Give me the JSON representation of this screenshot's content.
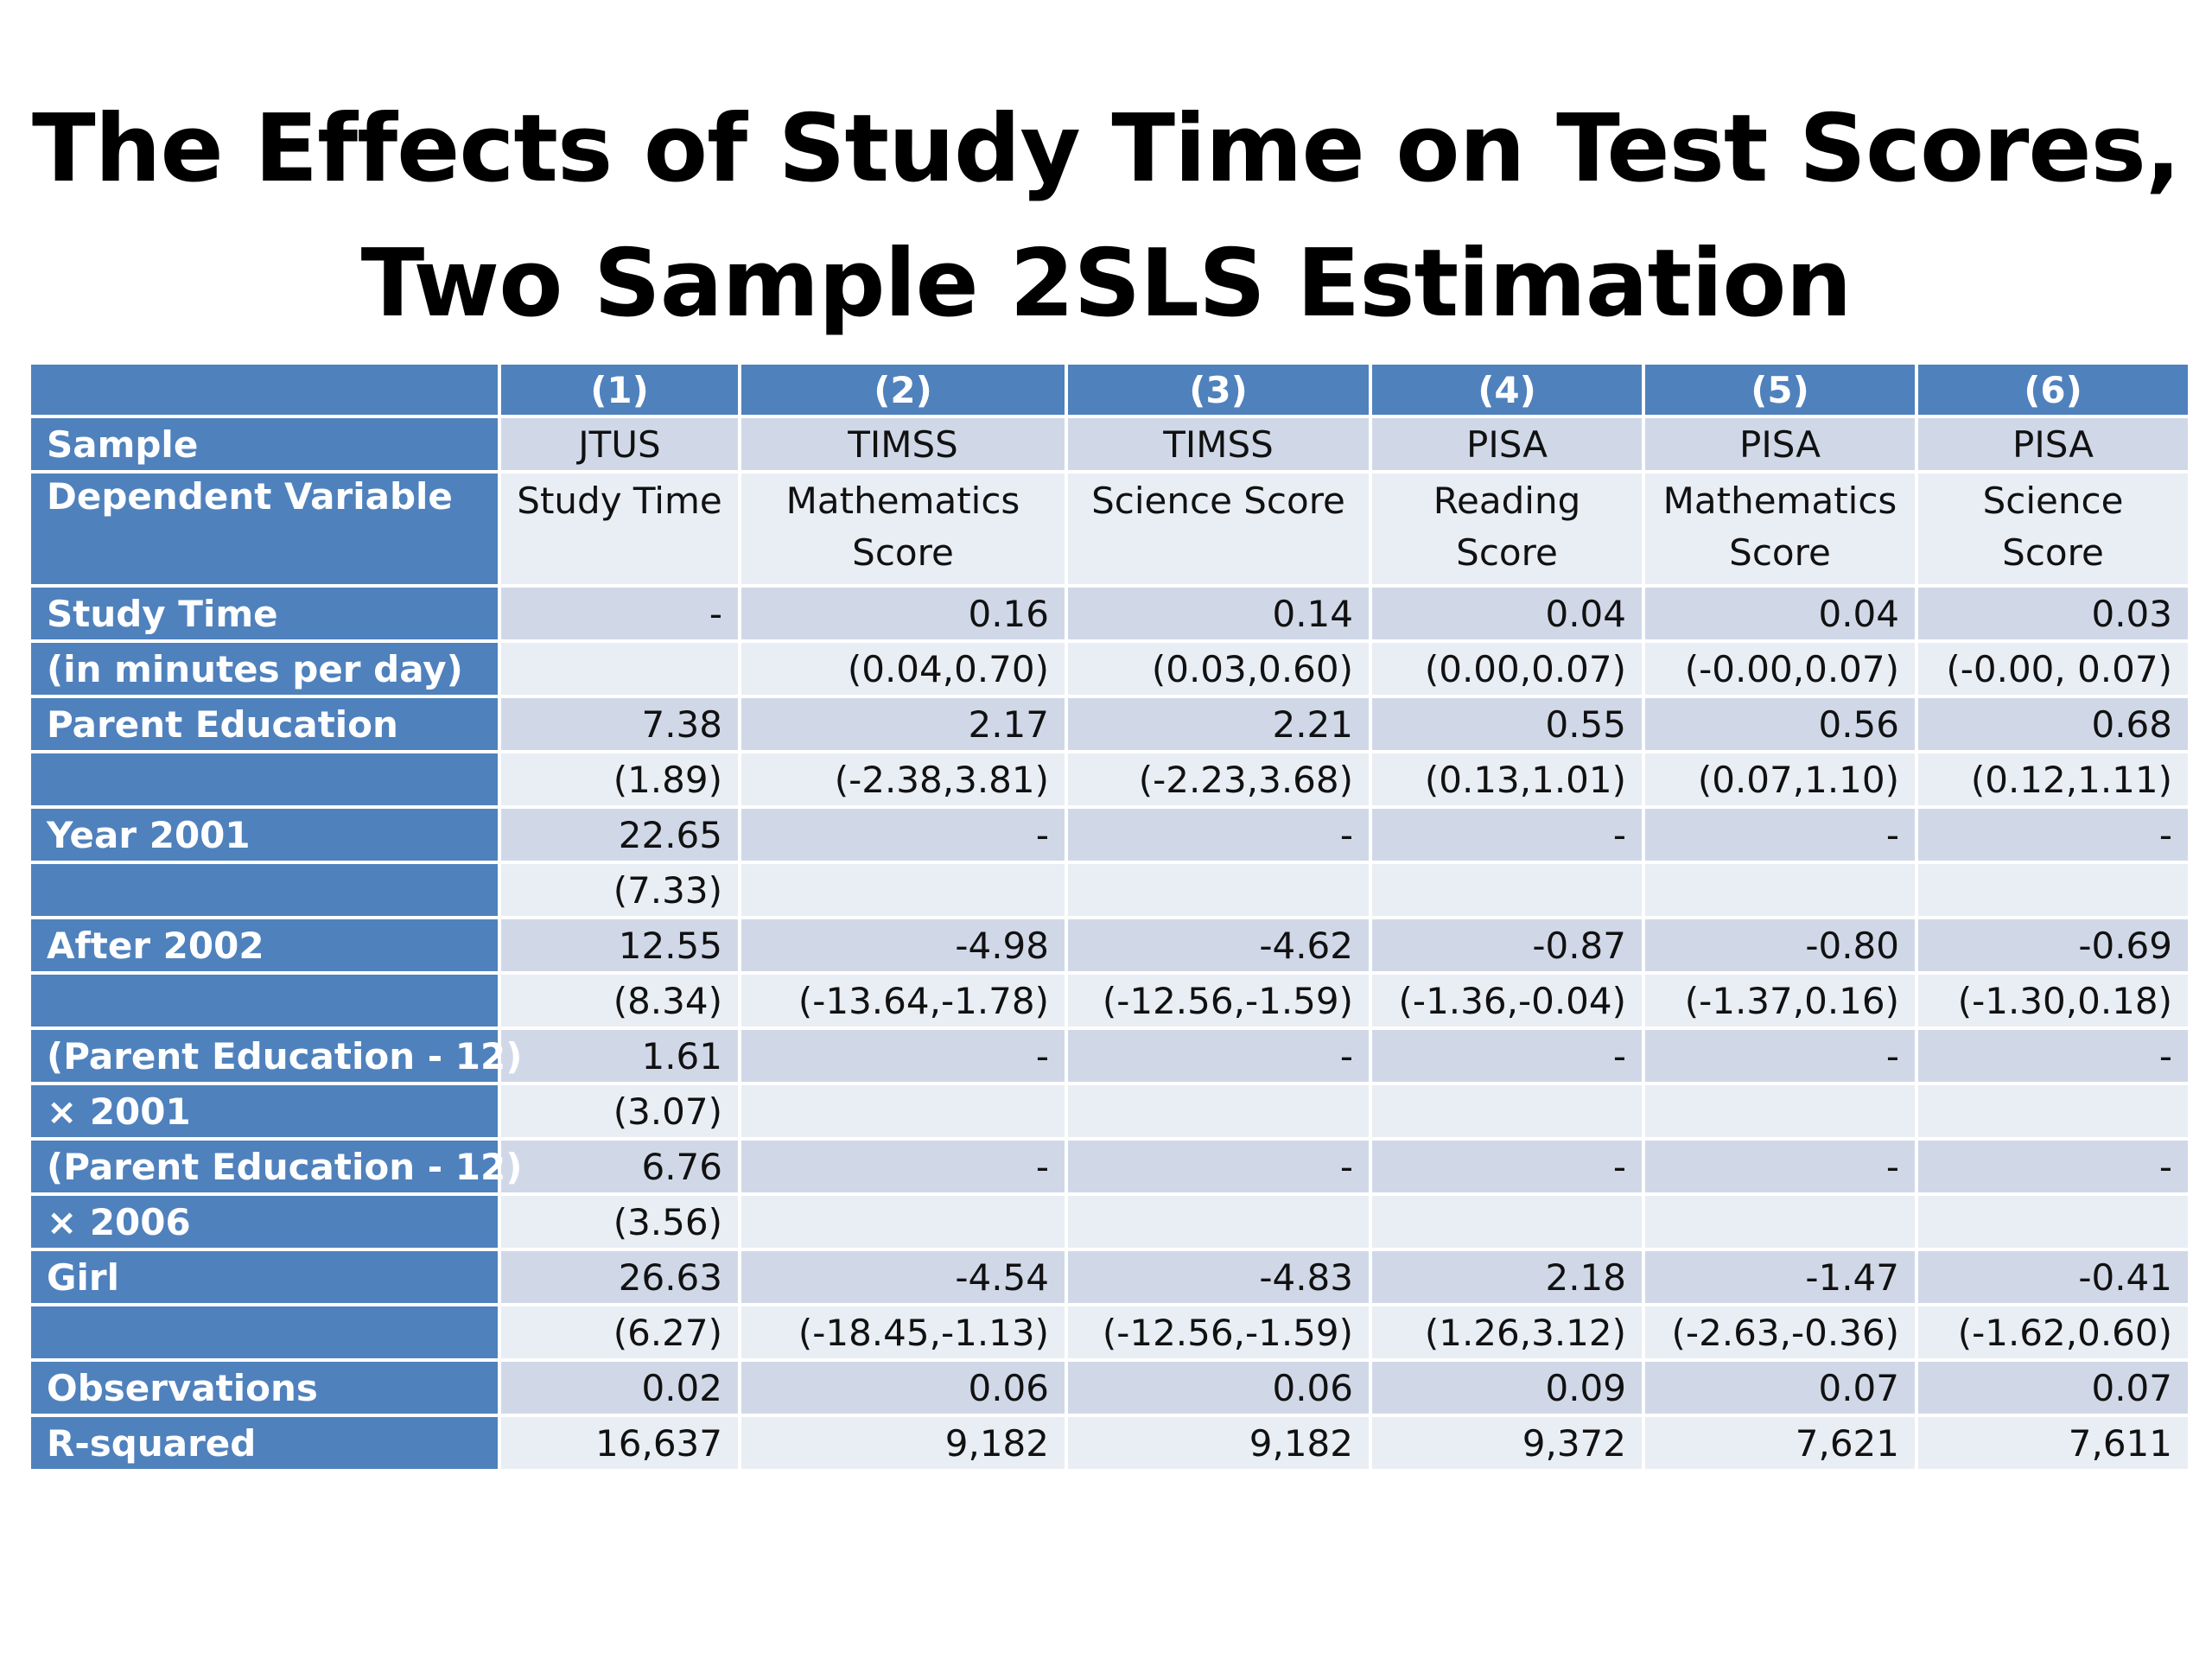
{
  "title": {
    "line1": "The Effects of Study Time on Test Scores,",
    "line2": "Two Sample 2SLS Estimation"
  },
  "table": {
    "columns": [
      "",
      "(1)",
      "(2)",
      "(3)",
      "(4)",
      "(5)",
      "(6)"
    ],
    "sample": {
      "label": "Sample",
      "values": [
        "JTUS",
        "TIMSS",
        "TIMSS",
        "PISA",
        "PISA",
        "PISA"
      ]
    },
    "dependent": {
      "label": "Dependent Variable",
      "values": [
        "Study Time",
        "Mathematics Score",
        "Science Score",
        "Reading Score",
        "Mathematics Score",
        "Science Score"
      ]
    },
    "rows": [
      {
        "label": "Study Time",
        "values": [
          "-",
          "0.16",
          "0.14",
          "0.04",
          "0.04",
          "0.03"
        ]
      },
      {
        "label": "(in minutes per day)",
        "values": [
          "",
          "(0.04,0.70)",
          "(0.03,0.60)",
          "(0.00,0.07)",
          "(-0.00,0.07)",
          "(-0.00, 0.07)"
        ]
      },
      {
        "label": "Parent Education",
        "values": [
          "7.38",
          "2.17",
          "2.21",
          "0.55",
          "0.56",
          "0.68"
        ]
      },
      {
        "label": "",
        "values": [
          "(1.89)",
          "(-2.38,3.81)",
          "(-2.23,3.68)",
          "(0.13,1.01)",
          "(0.07,1.10)",
          "(0.12,1.11)"
        ]
      },
      {
        "label": "Year 2001",
        "values": [
          "22.65",
          "-",
          "-",
          "-",
          "-",
          "-"
        ]
      },
      {
        "label": "",
        "values": [
          "(7.33)",
          "",
          "",
          "",
          "",
          ""
        ]
      },
      {
        "label": "After 2002",
        "values": [
          "12.55",
          "-4.98",
          "-4.62",
          "-0.87",
          "-0.80",
          "-0.69"
        ]
      },
      {
        "label": "",
        "values": [
          "(8.34)",
          "(-13.64,-1.78)",
          "(-12.56,-1.59)",
          "(-1.36,-0.04)",
          "(-1.37,0.16)",
          "(-1.30,0.18)"
        ]
      },
      {
        "label": "(Parent Education - 12)",
        "values": [
          "1.61",
          "-",
          "-",
          "-",
          "-",
          "-"
        ]
      },
      {
        "label": "× 2001",
        "values": [
          "(3.07)",
          "",
          "",
          "",
          "",
          ""
        ]
      },
      {
        "label": "(Parent Education - 12)",
        "values": [
          "6.76",
          "-",
          "-",
          "-",
          "-",
          "-"
        ]
      },
      {
        "label": " × 2006",
        "values": [
          "(3.56)",
          "",
          "",
          "",
          "",
          ""
        ]
      },
      {
        "label": "Girl",
        "values": [
          "26.63",
          "-4.54",
          "-4.83",
          "2.18",
          "-1.47",
          "-0.41"
        ]
      },
      {
        "label": "",
        "values": [
          "(6.27)",
          "(-18.45,-1.13)",
          "(-12.56,-1.59)",
          "(1.26,3.12)",
          "(-2.63,-0.36)",
          "(-1.62,0.60)"
        ]
      },
      {
        "label": "Observations",
        "values": [
          "0.02",
          "0.06",
          "0.06",
          "0.09",
          "0.07",
          "0.07"
        ]
      },
      {
        "label": "R-squared",
        "values": [
          "16,637",
          "9,182",
          "9,182",
          "9,372",
          "7,621",
          "7,611"
        ]
      }
    ]
  },
  "colors": {
    "header_blue": "#4f81bd",
    "row_dark": "#d0d8e8",
    "row_light": "#e9edf4"
  }
}
